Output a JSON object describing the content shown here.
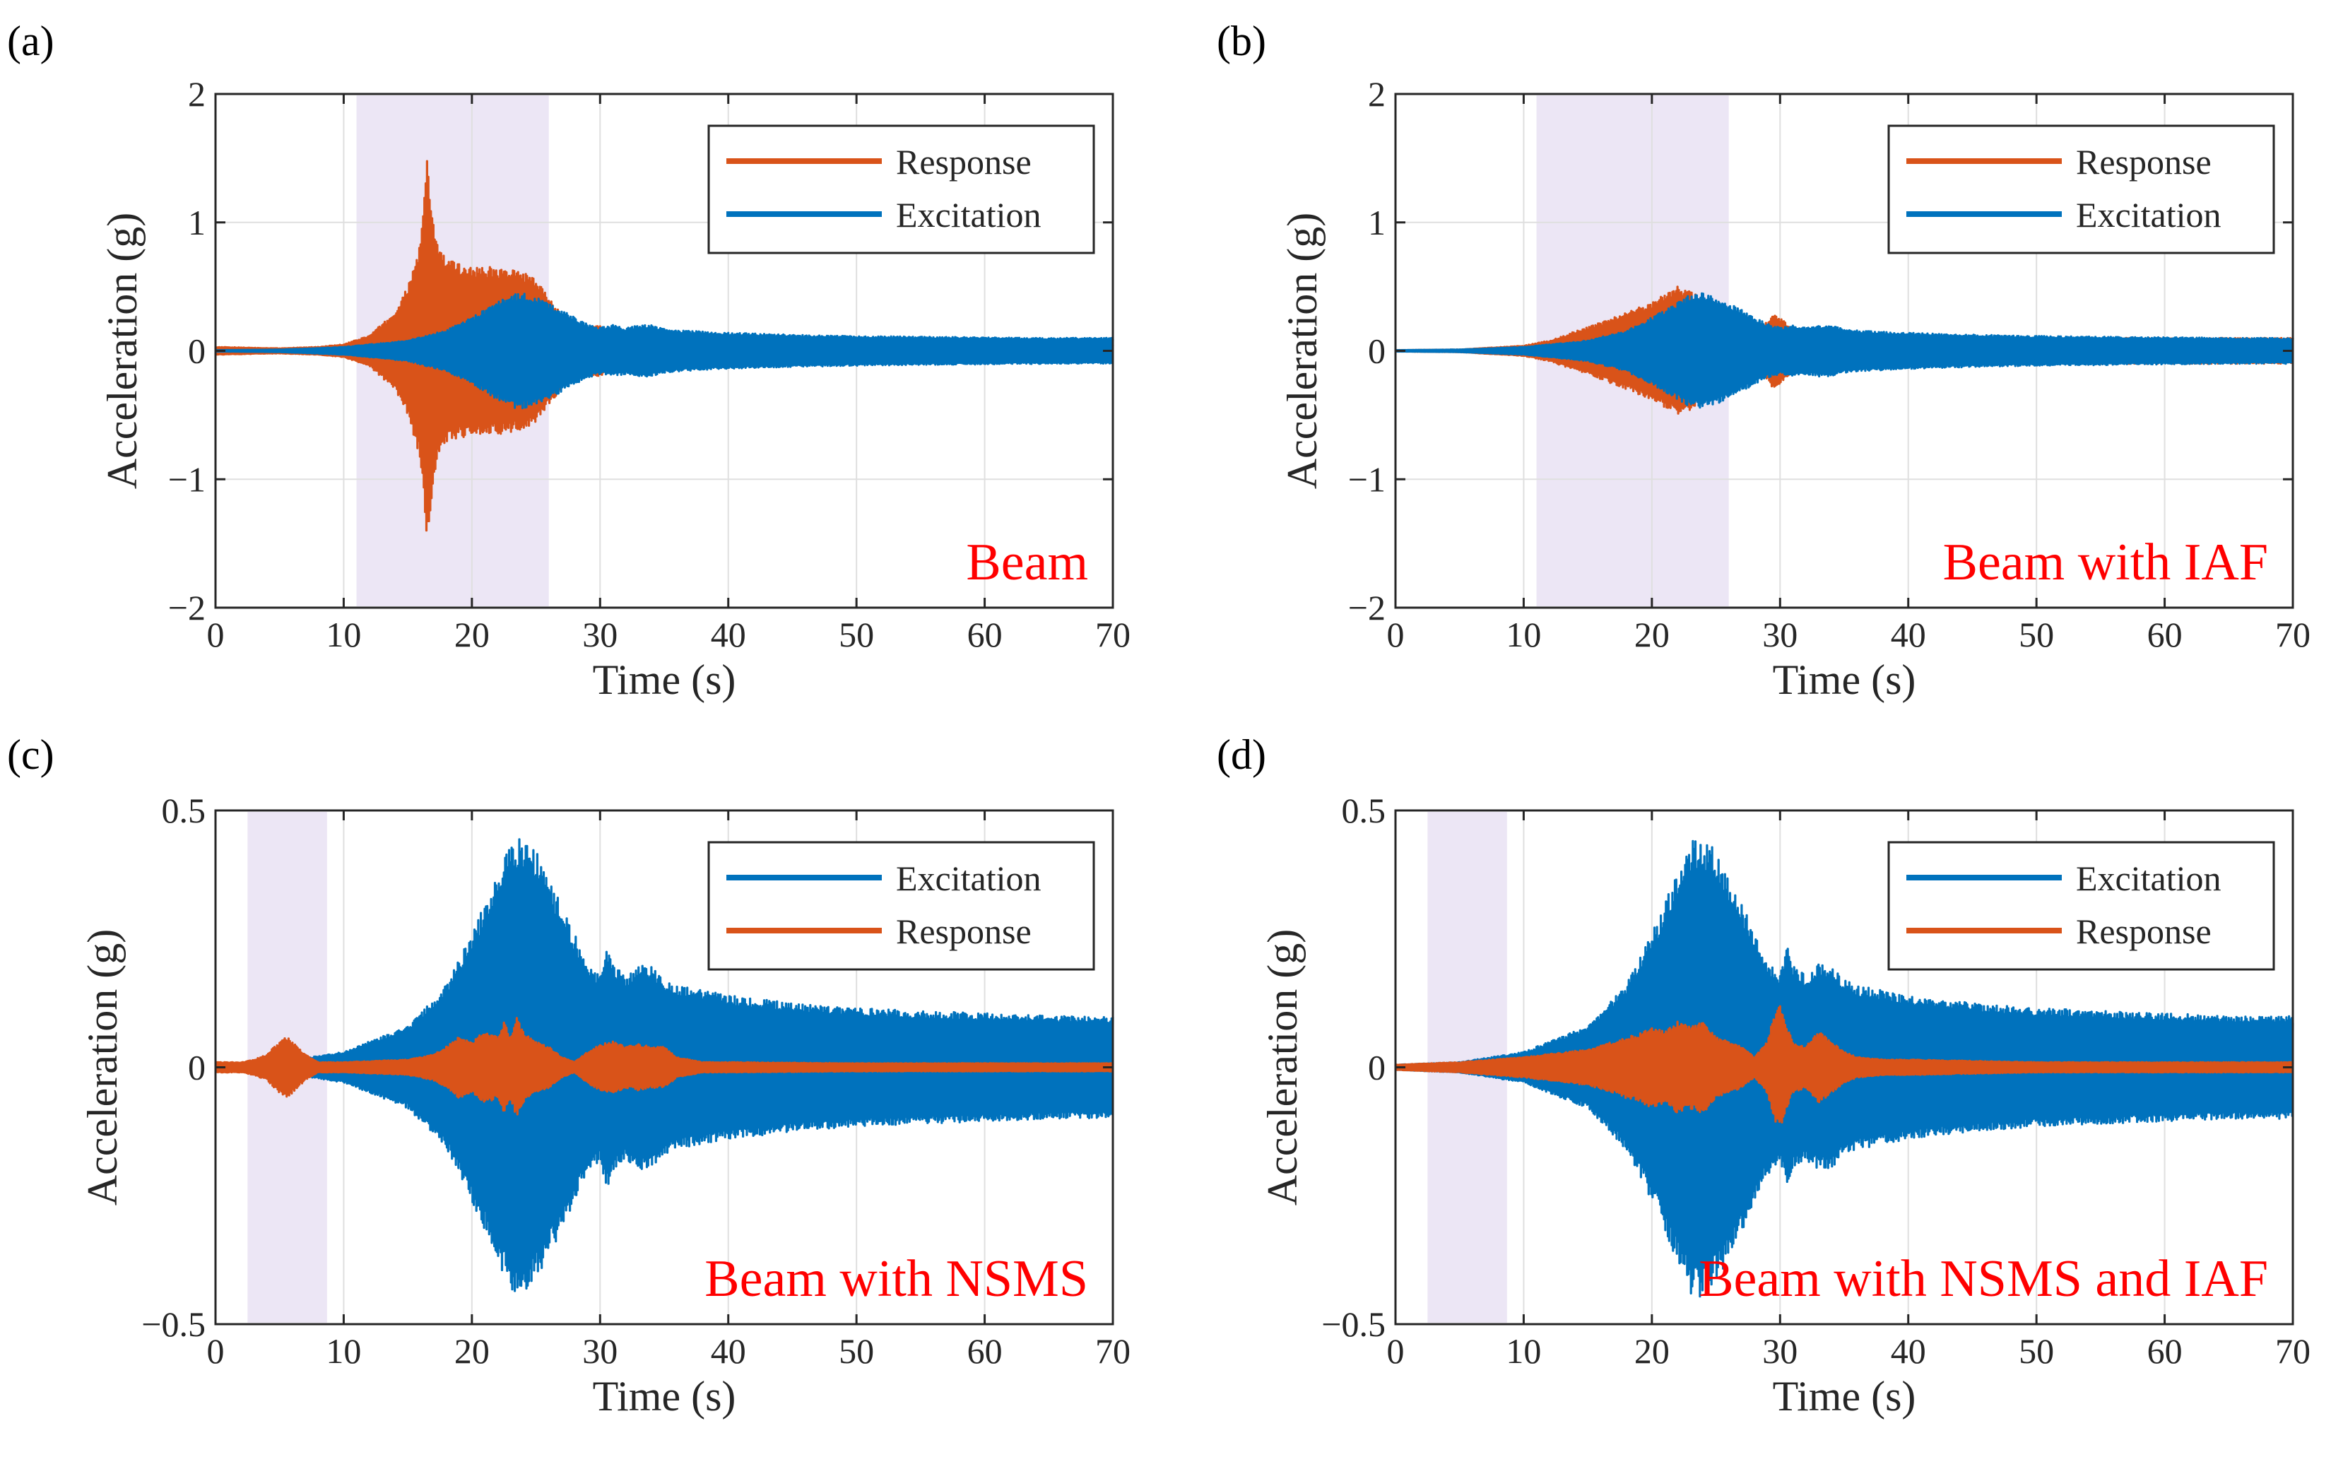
{
  "figure": {
    "background": "#ffffff",
    "colors": {
      "response": "#d95319",
      "excitation": "#0072bd",
      "highlight": "#ece6f5",
      "annotation": "#ff0000"
    }
  },
  "chart_data": [
    {
      "type": "line",
      "panel_label": "(a)",
      "annotation": "Beam",
      "xlabel": "Time (s)",
      "ylabel": "Acceleration (g)",
      "xlim": [
        0,
        70
      ],
      "ylim": [
        -2,
        2
      ],
      "xticks": [
        0,
        10,
        20,
        30,
        40,
        50,
        60,
        70
      ],
      "xtick_labels": [
        "0",
        "10",
        "20",
        "30",
        "40",
        "50",
        "60",
        "70"
      ],
      "yticks": [
        -2,
        -1,
        0,
        1,
        2
      ],
      "ytick_labels": [
        "−2",
        "−1",
        "0",
        "1",
        "2"
      ],
      "grid": true,
      "legend": {
        "location": "top-right",
        "entries": [
          "Response",
          "Excitation"
        ]
      },
      "highlight_band": [
        11,
        26
      ],
      "draw_order": [
        "Response",
        "Excitation"
      ],
      "series": [
        {
          "name": "Response",
          "color": "#d95319",
          "envelope_x": [
            0,
            5,
            8,
            10,
            12,
            14,
            15,
            16,
            16.5,
            17,
            17.5,
            18,
            19,
            20,
            22,
            24,
            25,
            26,
            27,
            28,
            29,
            30,
            31,
            32,
            34,
            36,
            40,
            45,
            50,
            60,
            70
          ],
          "envelope_amp": [
            0.03,
            0.02,
            0.03,
            0.05,
            0.12,
            0.3,
            0.5,
            0.85,
            1.5,
            1.0,
            0.8,
            0.72,
            0.68,
            0.66,
            0.65,
            0.62,
            0.55,
            0.42,
            0.3,
            0.22,
            0.18,
            0.2,
            0.12,
            0.1,
            0.08,
            0.07,
            0.06,
            0.05,
            0.05,
            0.05,
            0.05
          ]
        },
        {
          "name": "Excitation",
          "color": "#0072bd",
          "envelope_x": [
            0,
            5,
            10,
            15,
            18,
            20,
            22,
            23,
            24,
            25,
            27,
            28,
            29,
            30,
            31,
            32,
            33,
            34,
            35,
            36,
            38,
            40,
            45,
            50,
            55,
            60,
            65,
            70
          ],
          "envelope_amp": [
            0.005,
            0.01,
            0.03,
            0.08,
            0.16,
            0.26,
            0.38,
            0.44,
            0.45,
            0.42,
            0.32,
            0.26,
            0.21,
            0.18,
            0.2,
            0.18,
            0.2,
            0.2,
            0.17,
            0.16,
            0.15,
            0.14,
            0.125,
            0.115,
            0.11,
            0.105,
            0.1,
            0.1
          ]
        }
      ]
    },
    {
      "type": "line",
      "panel_label": "(b)",
      "annotation": "Beam with IAF",
      "xlabel": "Time (s)",
      "ylabel": "Acceleration (g)",
      "xlim": [
        0,
        70
      ],
      "ylim": [
        -2,
        2
      ],
      "xticks": [
        0,
        10,
        20,
        30,
        40,
        50,
        60,
        70
      ],
      "xtick_labels": [
        "0",
        "10",
        "20",
        "30",
        "40",
        "50",
        "60",
        "70"
      ],
      "yticks": [
        -2,
        -1,
        0,
        1,
        2
      ],
      "ytick_labels": [
        "−2",
        "−1",
        "0",
        "1",
        "2"
      ],
      "grid": true,
      "legend": {
        "location": "top-right",
        "entries": [
          "Response",
          "Excitation"
        ]
      },
      "highlight_band": [
        11,
        26
      ],
      "draw_order": [
        "Response",
        "Excitation"
      ],
      "series": [
        {
          "name": "Response",
          "color": "#d95319",
          "envelope_x": [
            0,
            5,
            10,
            12,
            14,
            16,
            18,
            20,
            21,
            22,
            23,
            24,
            25,
            26,
            27,
            28,
            29,
            29.5,
            30,
            31,
            32,
            34,
            36,
            40,
            50,
            60,
            70
          ],
          "envelope_amp": [
            0.005,
            0.01,
            0.04,
            0.08,
            0.15,
            0.22,
            0.3,
            0.38,
            0.44,
            0.5,
            0.47,
            0.4,
            0.34,
            0.3,
            0.25,
            0.2,
            0.22,
            0.3,
            0.26,
            0.17,
            0.14,
            0.13,
            0.12,
            0.11,
            0.1,
            0.1,
            0.1
          ]
        },
        {
          "name": "Excitation",
          "color": "#0072bd",
          "envelope_x": [
            0,
            5,
            10,
            15,
            18,
            20,
            22,
            23,
            24,
            25,
            27,
            28,
            29,
            30,
            31,
            32,
            33,
            34,
            35,
            36,
            38,
            40,
            45,
            50,
            55,
            60,
            65,
            70
          ],
          "envelope_amp": [
            0.005,
            0.01,
            0.03,
            0.08,
            0.16,
            0.26,
            0.38,
            0.44,
            0.45,
            0.42,
            0.32,
            0.26,
            0.21,
            0.18,
            0.2,
            0.18,
            0.2,
            0.2,
            0.17,
            0.16,
            0.15,
            0.14,
            0.125,
            0.115,
            0.11,
            0.105,
            0.1,
            0.1
          ]
        }
      ]
    },
    {
      "type": "line",
      "panel_label": "(c)",
      "annotation": "Beam with NSMS",
      "xlabel": "Time (s)",
      "ylabel": "Acceleration (g)",
      "xlim": [
        0,
        70
      ],
      "ylim": [
        -0.5,
        0.5
      ],
      "xticks": [
        0,
        10,
        20,
        30,
        40,
        50,
        60,
        70
      ],
      "xtick_labels": [
        "0",
        "10",
        "20",
        "30",
        "40",
        "50",
        "60",
        "70"
      ],
      "yticks": [
        -0.5,
        0,
        0.5
      ],
      "ytick_labels": [
        "−0.5",
        "0",
        "0.5"
      ],
      "grid": true,
      "legend": {
        "location": "top-right",
        "entries": [
          "Excitation",
          "Response"
        ]
      },
      "highlight_band": [
        2.5,
        8.7
      ],
      "draw_order": [
        "Excitation",
        "Response"
      ],
      "series": [
        {
          "name": "Excitation",
          "color": "#0072bd",
          "envelope_x": [
            0,
            5,
            10,
            15,
            18,
            20,
            22,
            23,
            24,
            25,
            27,
            28,
            29,
            30,
            30.5,
            31,
            32,
            33,
            34,
            35,
            36,
            38,
            40,
            45,
            50,
            55,
            60,
            65,
            70
          ],
          "envelope_amp": [
            0.005,
            0.01,
            0.03,
            0.08,
            0.16,
            0.26,
            0.38,
            0.44,
            0.45,
            0.42,
            0.32,
            0.26,
            0.21,
            0.18,
            0.24,
            0.2,
            0.18,
            0.2,
            0.2,
            0.17,
            0.16,
            0.15,
            0.14,
            0.125,
            0.115,
            0.11,
            0.105,
            0.1,
            0.1
          ]
        },
        {
          "name": "Response",
          "color": "#d95319",
          "envelope_x": [
            0,
            1,
            2,
            3,
            4,
            5,
            5.5,
            6,
            7,
            8,
            10,
            15,
            17,
            18,
            19,
            20,
            21,
            22,
            22.5,
            23,
            23.5,
            24,
            25,
            26,
            27,
            28,
            29,
            30,
            31,
            32,
            33,
            34,
            35,
            36,
            38,
            40,
            50,
            60,
            70
          ],
          "envelope_amp": [
            0.01,
            0.01,
            0.01,
            0.015,
            0.025,
            0.05,
            0.06,
            0.05,
            0.025,
            0.01,
            0.01,
            0.015,
            0.025,
            0.04,
            0.06,
            0.05,
            0.07,
            0.06,
            0.09,
            0.06,
            0.1,
            0.07,
            0.05,
            0.04,
            0.02,
            0.01,
            0.03,
            0.045,
            0.05,
            0.04,
            0.045,
            0.04,
            0.04,
            0.02,
            0.01,
            0.01,
            0.008,
            0.008,
            0.008
          ]
        }
      ]
    },
    {
      "type": "line",
      "panel_label": "(d)",
      "annotation": "Beam with NSMS and IAF",
      "xlabel": "Time (s)",
      "ylabel": "Acceleration (g)",
      "xlim": [
        0,
        70
      ],
      "ylim": [
        -0.5,
        0.5
      ],
      "xticks": [
        0,
        10,
        20,
        30,
        40,
        50,
        60,
        70
      ],
      "xtick_labels": [
        "0",
        "10",
        "20",
        "30",
        "40",
        "50",
        "60",
        "70"
      ],
      "yticks": [
        -0.5,
        0,
        0.5
      ],
      "ytick_labels": [
        "−0.5",
        "0",
        "0.5"
      ],
      "grid": true,
      "legend": {
        "location": "top-right",
        "entries": [
          "Excitation",
          "Response"
        ]
      },
      "highlight_band": [
        2.5,
        8.7
      ],
      "draw_order": [
        "Excitation",
        "Response"
      ],
      "series": [
        {
          "name": "Excitation",
          "color": "#0072bd",
          "envelope_x": [
            0,
            5,
            10,
            15,
            18,
            20,
            22,
            23,
            24,
            25,
            27,
            28,
            29,
            30,
            30.5,
            31,
            32,
            33,
            34,
            35,
            36,
            38,
            40,
            45,
            50,
            55,
            60,
            65,
            70
          ],
          "envelope_amp": [
            0.005,
            0.01,
            0.03,
            0.08,
            0.16,
            0.26,
            0.38,
            0.44,
            0.45,
            0.42,
            0.32,
            0.26,
            0.21,
            0.18,
            0.24,
            0.2,
            0.18,
            0.2,
            0.2,
            0.17,
            0.16,
            0.15,
            0.14,
            0.125,
            0.115,
            0.11,
            0.105,
            0.1,
            0.1
          ]
        },
        {
          "name": "Response",
          "color": "#d95319",
          "envelope_x": [
            0,
            5,
            10,
            15,
            17,
            18,
            19,
            20,
            21,
            22,
            23,
            24,
            25,
            26,
            27,
            28,
            29,
            29.5,
            30,
            30.5,
            31,
            32,
            33,
            34,
            35,
            36,
            38,
            40,
            50,
            60,
            70
          ],
          "envelope_amp": [
            0.005,
            0.01,
            0.02,
            0.035,
            0.05,
            0.06,
            0.065,
            0.08,
            0.07,
            0.09,
            0.08,
            0.09,
            0.06,
            0.05,
            0.04,
            0.02,
            0.05,
            0.1,
            0.12,
            0.08,
            0.05,
            0.04,
            0.07,
            0.05,
            0.03,
            0.02,
            0.015,
            0.015,
            0.01,
            0.01,
            0.01
          ]
        }
      ]
    }
  ]
}
